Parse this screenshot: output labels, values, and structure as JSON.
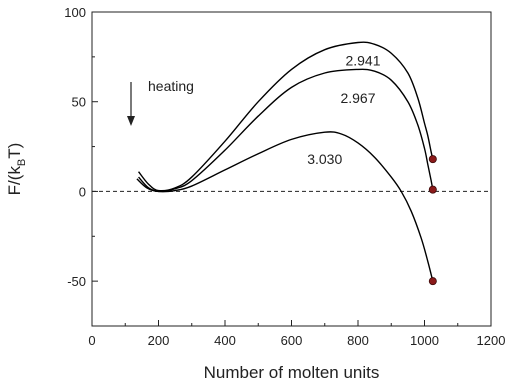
{
  "chart_data": {
    "type": "line",
    "title": "",
    "xlabel": "Number of molten units",
    "ylabel_parts": {
      "main": "F/(k",
      "sub": "B",
      "tail": "T)"
    },
    "xlim": [
      0,
      1200
    ],
    "ylim": [
      -75,
      100
    ],
    "x_ticks": [
      0,
      200,
      400,
      600,
      800,
      1000,
      1200
    ],
    "y_ticks": [
      -50,
      0,
      50,
      100
    ],
    "grid": false,
    "reference_line": {
      "y": 0,
      "style": "dashed"
    },
    "annotation": {
      "text": "heating",
      "arrow": "down"
    },
    "series": [
      {
        "name": "2.941",
        "x": [
          140,
          170,
          200,
          250,
          300,
          400,
          500,
          600,
          700,
          800,
          850,
          900,
          950,
          980,
          1000,
          1010,
          1020,
          1025
        ],
        "y": [
          11,
          4,
          0.5,
          2,
          8,
          28,
          50,
          68,
          79,
          83,
          82,
          77,
          66,
          52,
          38,
          31,
          22,
          18
        ]
      },
      {
        "name": "2.967",
        "x": [
          135,
          165,
          200,
          250,
          300,
          400,
          500,
          600,
          700,
          800,
          850,
          900,
          950,
          980,
          1000,
          1010,
          1020,
          1025
        ],
        "y": [
          7,
          2,
          0,
          1.5,
          6,
          23,
          42,
          58,
          66,
          68,
          67,
          62,
          50,
          37,
          24,
          15,
          6,
          1
        ]
      },
      {
        "name": "3.030",
        "x": [
          140,
          170,
          200,
          250,
          300,
          400,
          500,
          600,
          700,
          750,
          800,
          850,
          900,
          930,
          960,
          990,
          1010,
          1025
        ],
        "y": [
          8,
          2,
          0,
          0.5,
          3,
          12,
          21,
          29,
          33,
          32,
          27,
          19,
          8,
          0,
          -11,
          -26,
          -39,
          -50
        ]
      }
    ],
    "endpoint_markers": [
      {
        "x": 1025,
        "y": 18
      },
      {
        "x": 1025,
        "y": 1
      },
      {
        "x": 1025,
        "y": -50
      }
    ],
    "label_positions": [
      {
        "series": "2.941",
        "x": 815,
        "y": 73
      },
      {
        "series": "2.967",
        "x": 800,
        "y": 52
      },
      {
        "series": "3.030",
        "x": 700,
        "y": 18
      }
    ],
    "colors": {
      "line": "#000000",
      "marker": "#8b1a1a",
      "axis": "#222222"
    }
  }
}
